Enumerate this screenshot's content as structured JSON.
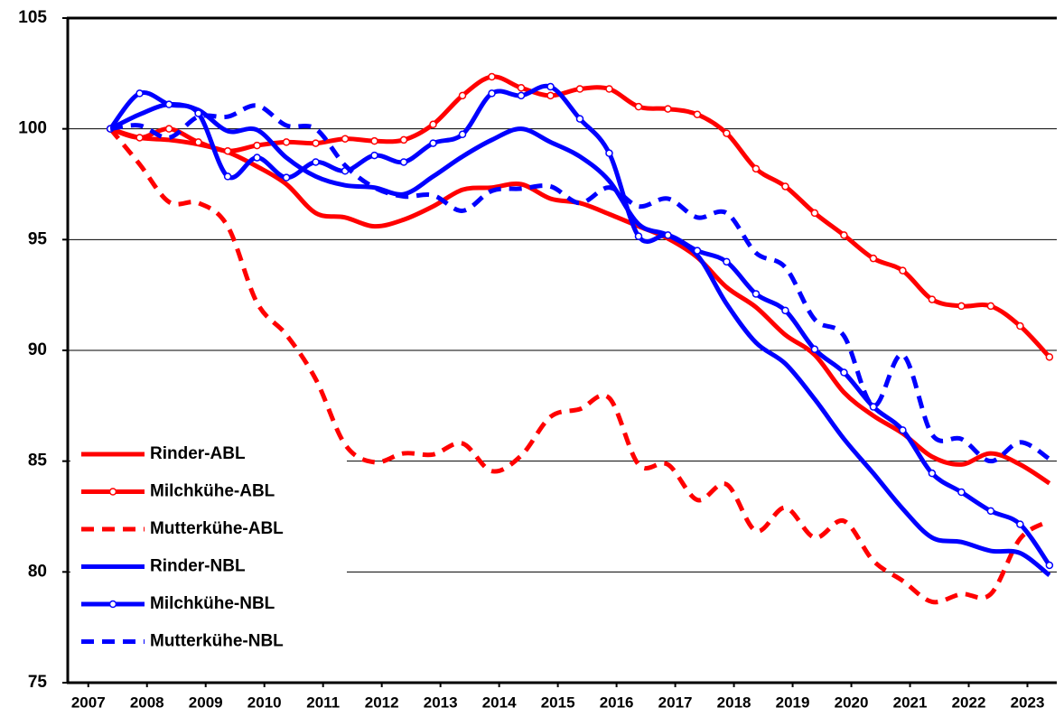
{
  "chart_data": {
    "type": "line",
    "x": [
      2007.875,
      2008.375,
      2008.875,
      2009.375,
      2009.875,
      2010.375,
      2010.875,
      2011.375,
      2011.875,
      2012.375,
      2012.875,
      2013.375,
      2013.875,
      2014.375,
      2014.875,
      2015.375,
      2015.875,
      2016.375,
      2016.875,
      2017.375,
      2017.875,
      2018.375,
      2018.875,
      2019.375,
      2019.875,
      2020.375,
      2020.875,
      2021.375,
      2021.875,
      2022.375,
      2022.875,
      2023.375,
      2023.875
    ],
    "xlim": [
      2007.15,
      2024.0
    ],
    "xticks": [
      {
        "value": 2007.5,
        "label": "2007"
      },
      {
        "value": 2008.5,
        "label": "2008"
      },
      {
        "value": 2009.5,
        "label": "2009"
      },
      {
        "value": 2010.5,
        "label": "2010"
      },
      {
        "value": 2011.5,
        "label": "2011"
      },
      {
        "value": 2012.5,
        "label": "2012"
      },
      {
        "value": 2013.5,
        "label": "2013"
      },
      {
        "value": 2014.5,
        "label": "2014"
      },
      {
        "value": 2015.5,
        "label": "2015"
      },
      {
        "value": 2016.5,
        "label": "2016"
      },
      {
        "value": 2017.5,
        "label": "2017"
      },
      {
        "value": 2018.5,
        "label": "2018"
      },
      {
        "value": 2019.5,
        "label": "2019"
      },
      {
        "value": 2020.5,
        "label": "2020"
      },
      {
        "value": 2021.5,
        "label": "2021"
      },
      {
        "value": 2022.5,
        "label": "2022"
      },
      {
        "value": 2023.5,
        "label": "2023"
      }
    ],
    "ylim": [
      75,
      105
    ],
    "yticks": [
      75,
      80,
      85,
      90,
      95,
      100,
      105
    ],
    "grid": true,
    "legend": "lower left",
    "series": [
      {
        "name": "Rinder-ABL",
        "color": "#ff0000",
        "style": "solid",
        "markers": false,
        "values": [
          100,
          99.6,
          99.5,
          99.3,
          98.95,
          98.3,
          97.5,
          96.2,
          96.0,
          95.6,
          95.9,
          96.5,
          97.25,
          97.35,
          97.5,
          96.85,
          96.65,
          96.15,
          95.6,
          95.05,
          94.2,
          92.85,
          91.95,
          90.7,
          89.8,
          88.1,
          87.05,
          86.25,
          85.2,
          84.85,
          85.35,
          84.85,
          84.0
        ]
      },
      {
        "name": "Milchkühe-ABL",
        "color": "#ff0000",
        "style": "solid",
        "markers": true,
        "values": [
          100,
          99.6,
          100.0,
          99.4,
          99.0,
          99.25,
          99.4,
          99.35,
          99.55,
          99.45,
          99.5,
          100.2,
          101.5,
          102.35,
          101.85,
          101.5,
          101.8,
          101.8,
          101.0,
          100.9,
          100.65,
          99.8,
          98.2,
          97.4,
          96.2,
          95.2,
          94.15,
          93.6,
          92.3,
          92.0,
          92.0,
          91.1,
          89.7
        ]
      },
      {
        "name": "Mutterkühe-ABL",
        "color": "#ff0000",
        "style": "dashed",
        "markers": false,
        "values": [
          100,
          98.4,
          96.7,
          96.65,
          95.6,
          92.15,
          90.7,
          88.7,
          85.75,
          84.95,
          85.35,
          85.3,
          85.8,
          84.55,
          85.25,
          87.0,
          87.35,
          87.85,
          84.85,
          84.85,
          83.25,
          83.95,
          81.85,
          82.9,
          81.55,
          82.3,
          80.5,
          79.6,
          78.65,
          79.0,
          79.0,
          81.5,
          82.3
        ]
      },
      {
        "name": "Rinder-NBL",
        "color": "#0000ff",
        "style": "solid",
        "markers": false,
        "values": [
          100,
          100.65,
          101.1,
          100.85,
          99.9,
          99.95,
          98.7,
          97.85,
          97.45,
          97.35,
          97.05,
          97.85,
          98.75,
          99.5,
          100.0,
          99.4,
          98.75,
          97.65,
          95.7,
          95.2,
          94.3,
          92.1,
          90.35,
          89.4,
          87.8,
          86.0,
          84.45,
          82.85,
          81.55,
          81.35,
          80.95,
          80.85,
          79.85
        ]
      },
      {
        "name": "Milchkühe-NBL",
        "color": "#0000ff",
        "style": "solid",
        "markers": true,
        "values": [
          100,
          101.6,
          101.1,
          100.7,
          97.85,
          98.7,
          97.8,
          98.5,
          98.1,
          98.8,
          98.5,
          99.35,
          99.75,
          101.6,
          101.5,
          101.9,
          100.45,
          98.9,
          95.15,
          95.2,
          94.5,
          94.0,
          92.55,
          91.8,
          90.05,
          89.0,
          87.45,
          86.4,
          84.45,
          83.6,
          82.75,
          82.15,
          80.3
        ]
      },
      {
        "name": "Mutterkühe-NBL",
        "color": "#0000ff",
        "style": "dashed",
        "markers": false,
        "values": [
          100,
          100.15,
          99.6,
          100.55,
          100.55,
          101.05,
          100.15,
          100.0,
          98.35,
          97.35,
          96.95,
          97.0,
          96.3,
          97.2,
          97.3,
          97.4,
          96.65,
          97.35,
          96.5,
          96.85,
          96.0,
          96.2,
          94.4,
          93.75,
          91.4,
          90.65,
          87.5,
          89.8,
          86.2,
          86.0,
          85.0,
          85.85,
          85.1
        ]
      }
    ]
  }
}
